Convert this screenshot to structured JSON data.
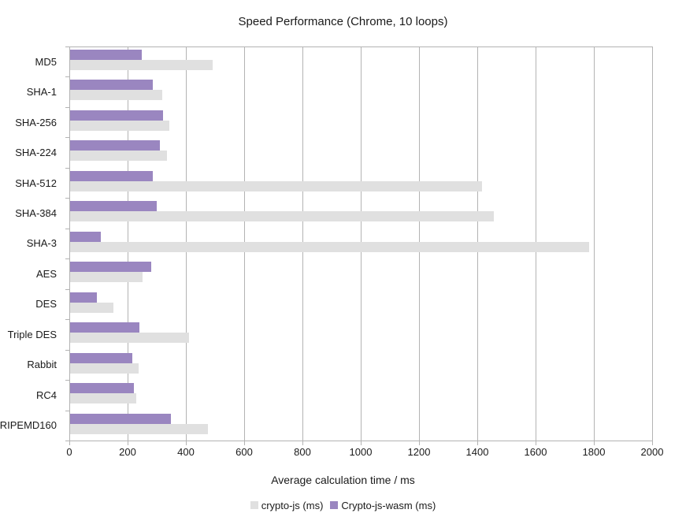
{
  "chart_data": {
    "type": "bar",
    "orientation": "horizontal",
    "title": "Speed Performance (Chrome, 10 loops)",
    "xlabel": "Average calculation time / ms",
    "ylabel": "",
    "xlim": [
      0,
      2000
    ],
    "xticks": [
      0,
      200,
      400,
      600,
      800,
      1000,
      1200,
      1400,
      1600,
      1800,
      2000
    ],
    "grid": "vertical-gridlines-on",
    "legend_position": "bottom-center",
    "bar_order_top_to_bottom": [
      "Crypto-js-wasm (ms)",
      "crypto-js (ms)"
    ],
    "categories": [
      "MD5",
      "SHA-1",
      "SHA-256",
      "SHA-224",
      "SHA-512",
      "SHA-384",
      "SHA-3",
      "AES",
      "DES",
      "Triple DES",
      "Rabbit",
      "RC4",
      "RIPEMD160"
    ],
    "series": [
      {
        "name": "crypto-js (ms)",
        "color": "#e0e0e0",
        "values": [
          490,
          315,
          340,
          333,
          1413,
          1454,
          1780,
          249,
          148,
          408,
          235,
          227,
          472
        ]
      },
      {
        "name": "Crypto-js-wasm (ms)",
        "color": "#9a86c0",
        "values": [
          245,
          285,
          318,
          308,
          285,
          297,
          105,
          278,
          93,
          238,
          213,
          219,
          345
        ]
      }
    ]
  },
  "colors": {
    "background": "#ffffff",
    "text": "#1a1a1a",
    "gridline": "#b3b3b3",
    "axis": "#b3b3b3"
  }
}
